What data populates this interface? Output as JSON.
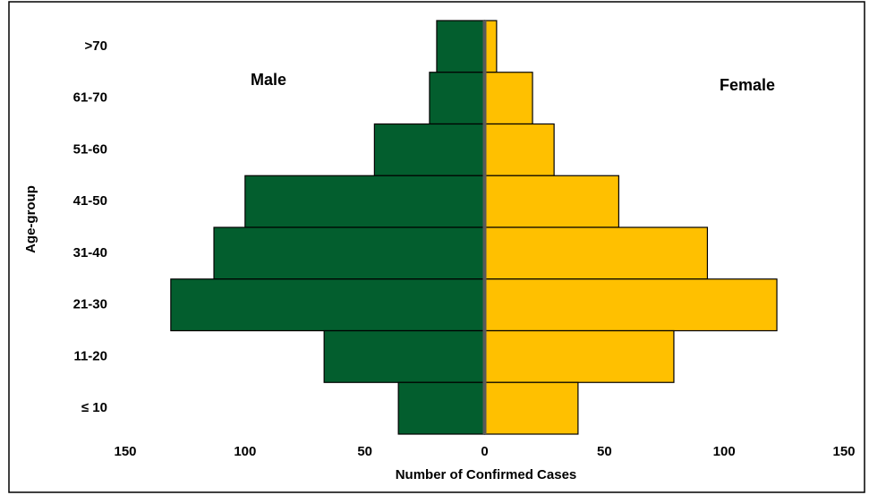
{
  "chart_data": {
    "type": "pyramid",
    "categories": [
      ">70",
      "61-70",
      "51-60",
      "41-50",
      "31-40",
      "21-30",
      "11-20",
      "≤ 10"
    ],
    "series": [
      {
        "name": "Male",
        "color": "#035e2e",
        "values": [
          -20,
          -23,
          -46,
          -100,
          -113,
          -131,
          -67,
          -36
        ]
      },
      {
        "name": "Female",
        "color": "#ffc000",
        "values": [
          5,
          20,
          29,
          56,
          93,
          122,
          79,
          39
        ]
      }
    ],
    "x_label": "Number of Confirmed Cases",
    "y_label": "Age-group",
    "xlim": [
      -150,
      150
    ],
    "xticks": [
      {
        "value": -150,
        "label": "150"
      },
      {
        "value": -100,
        "label": "100"
      },
      {
        "value": -50,
        "label": "50"
      },
      0,
      50,
      100,
      150
    ]
  }
}
